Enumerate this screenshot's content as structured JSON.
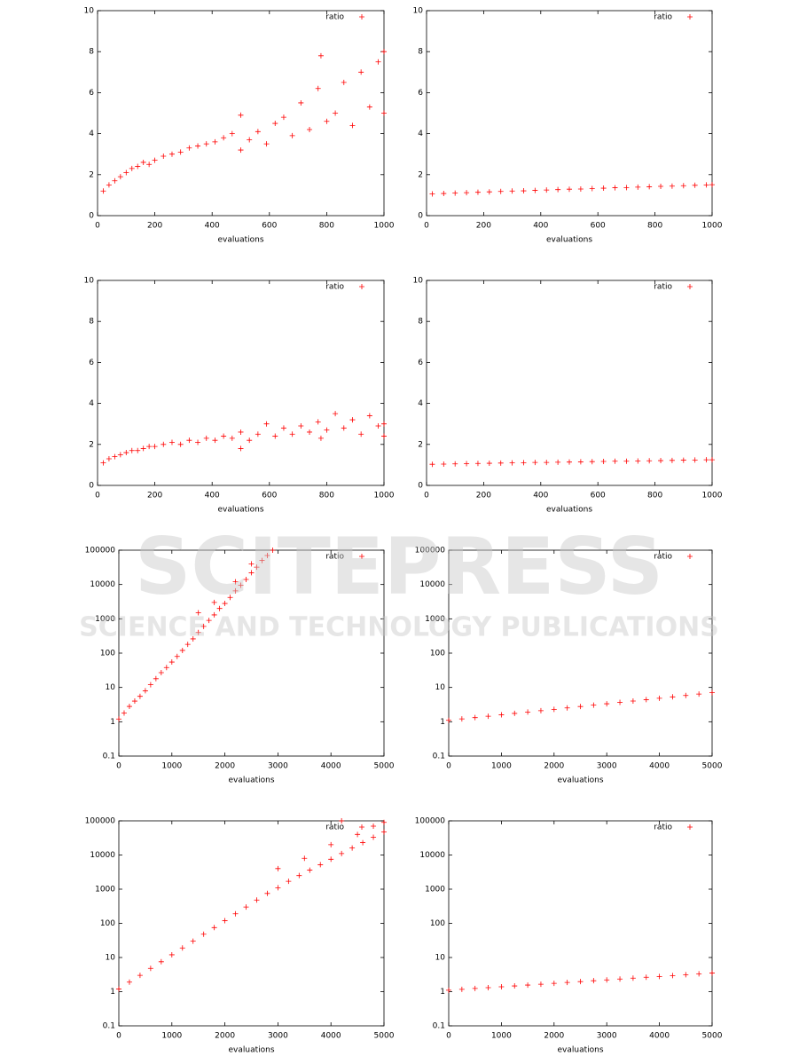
{
  "chart_data": [
    {
      "type": "scatter",
      "xlabel": "evaluations",
      "yscale": "linear",
      "legend": "upper right",
      "xlim": [
        0,
        1000
      ],
      "ylim": [
        0,
        10
      ],
      "xticks": [
        0,
        200,
        400,
        600,
        800,
        1000
      ],
      "yticks": [
        0,
        2,
        4,
        6,
        8,
        10
      ],
      "series": [
        {
          "name": "ratio",
          "color": "#ff0000",
          "x": [
            20,
            40,
            60,
            80,
            100,
            120,
            140,
            160,
            180,
            200,
            230,
            260,
            290,
            320,
            350,
            380,
            410,
            440,
            470,
            500,
            530,
            560,
            590,
            620,
            650,
            680,
            710,
            740,
            770,
            800,
            830,
            860,
            890,
            920,
            950,
            980,
            1000,
            500,
            780,
            1000
          ],
          "values": [
            1.2,
            1.5,
            1.7,
            1.9,
            2.1,
            2.3,
            2.4,
            2.6,
            2.5,
            2.7,
            2.9,
            3.0,
            3.1,
            3.3,
            3.4,
            3.5,
            3.6,
            3.8,
            4.0,
            4.9,
            3.7,
            4.1,
            3.5,
            4.5,
            4.8,
            3.9,
            5.5,
            4.2,
            6.2,
            4.6,
            5.0,
            6.5,
            4.4,
            7.0,
            5.3,
            7.5,
            5.0,
            3.2,
            7.8,
            8.0
          ]
        }
      ]
    },
    {
      "type": "scatter",
      "xlabel": "evaluations",
      "yscale": "linear",
      "legend": "upper right",
      "xlim": [
        0,
        1000
      ],
      "ylim": [
        0,
        10
      ],
      "xticks": [
        0,
        200,
        400,
        600,
        800,
        1000
      ],
      "yticks": [
        0,
        2,
        4,
        6,
        8,
        10
      ],
      "series": [
        {
          "name": "ratio",
          "color": "#ff0000",
          "x": [
            20,
            60,
            100,
            140,
            180,
            220,
            260,
            300,
            340,
            380,
            420,
            460,
            500,
            540,
            580,
            620,
            660,
            700,
            740,
            780,
            820,
            860,
            900,
            940,
            980,
            1000
          ],
          "values": [
            1.06,
            1.08,
            1.1,
            1.12,
            1.14,
            1.16,
            1.18,
            1.2,
            1.21,
            1.23,
            1.25,
            1.27,
            1.29,
            1.3,
            1.32,
            1.34,
            1.36,
            1.37,
            1.39,
            1.41,
            1.43,
            1.44,
            1.46,
            1.48,
            1.5,
            1.51
          ]
        }
      ]
    },
    {
      "type": "scatter",
      "xlabel": "evaluations",
      "yscale": "linear",
      "legend": "upper right",
      "xlim": [
        0,
        1000
      ],
      "ylim": [
        0,
        10
      ],
      "xticks": [
        0,
        200,
        400,
        600,
        800,
        1000
      ],
      "yticks": [
        0,
        2,
        4,
        6,
        8,
        10
      ],
      "series": [
        {
          "name": "ratio",
          "color": "#ff0000",
          "x": [
            20,
            40,
            60,
            80,
            100,
            120,
            140,
            160,
            180,
            200,
            230,
            260,
            290,
            320,
            350,
            380,
            410,
            440,
            470,
            500,
            530,
            560,
            590,
            620,
            650,
            680,
            710,
            740,
            770,
            800,
            830,
            860,
            890,
            920,
            950,
            980,
            1000,
            500,
            780,
            1000
          ],
          "values": [
            1.1,
            1.3,
            1.4,
            1.5,
            1.6,
            1.7,
            1.7,
            1.8,
            1.9,
            1.9,
            2.0,
            2.1,
            2.0,
            2.2,
            2.1,
            2.3,
            2.2,
            2.4,
            2.3,
            2.6,
            2.2,
            2.5,
            3.0,
            2.4,
            2.8,
            2.5,
            2.9,
            2.6,
            3.1,
            2.7,
            3.5,
            2.8,
            3.2,
            2.5,
            3.4,
            2.9,
            3.0,
            1.8,
            2.3,
            2.4
          ]
        }
      ]
    },
    {
      "type": "scatter",
      "xlabel": "evaluations",
      "yscale": "linear",
      "legend": "upper right",
      "xlim": [
        0,
        1000
      ],
      "ylim": [
        0,
        10
      ],
      "xticks": [
        0,
        200,
        400,
        600,
        800,
        1000
      ],
      "yticks": [
        0,
        2,
        4,
        6,
        8,
        10
      ],
      "series": [
        {
          "name": "ratio",
          "color": "#ff0000",
          "x": [
            20,
            60,
            100,
            140,
            180,
            220,
            260,
            300,
            340,
            380,
            420,
            460,
            500,
            540,
            580,
            620,
            660,
            700,
            740,
            780,
            820,
            860,
            900,
            940,
            980,
            1000
          ],
          "values": [
            1.03,
            1.04,
            1.05,
            1.06,
            1.07,
            1.08,
            1.09,
            1.1,
            1.11,
            1.12,
            1.12,
            1.13,
            1.14,
            1.15,
            1.16,
            1.17,
            1.18,
            1.18,
            1.19,
            1.2,
            1.21,
            1.22,
            1.23,
            1.24,
            1.25,
            1.25
          ]
        }
      ]
    },
    {
      "type": "scatter",
      "xlabel": "evaluations",
      "yscale": "log",
      "legend": "upper right",
      "xlim": [
        0,
        5000
      ],
      "ylim": [
        0.1,
        100000
      ],
      "xticks": [
        0,
        1000,
        2000,
        3000,
        4000,
        5000
      ],
      "yticks": [
        0.1,
        1,
        10,
        100,
        1000,
        10000,
        100000
      ],
      "series": [
        {
          "name": "ratio",
          "color": "#ff0000",
          "x": [
            0,
            100,
            200,
            300,
            400,
            500,
            600,
            700,
            800,
            900,
            1000,
            1100,
            1200,
            1300,
            1400,
            1500,
            1600,
            1700,
            1800,
            1900,
            2000,
            2100,
            2200,
            2300,
            2400,
            2500,
            2600,
            2700,
            2800,
            2900,
            1500,
            1800,
            2200,
            2500
          ],
          "values": [
            1.2,
            1.8,
            2.8,
            4,
            5.5,
            8,
            12,
            18,
            27,
            38,
            55,
            80,
            120,
            180,
            260,
            400,
            600,
            900,
            1300,
            2000,
            2800,
            4200,
            6500,
            9500,
            14000,
            22000,
            32000,
            50000,
            70000,
            100000,
            1500,
            3000,
            12000,
            40000
          ]
        }
      ]
    },
    {
      "type": "scatter",
      "xlabel": "evaluations",
      "yscale": "log",
      "legend": "upper right",
      "xlim": [
        0,
        5000
      ],
      "ylim": [
        0.1,
        100000
      ],
      "xticks": [
        0,
        1000,
        2000,
        3000,
        4000,
        5000
      ],
      "yticks": [
        0.1,
        1,
        10,
        100,
        1000,
        10000,
        100000
      ],
      "series": [
        {
          "name": "ratio",
          "color": "#ff0000",
          "x": [
            0,
            250,
            500,
            750,
            1000,
            1250,
            1500,
            1750,
            2000,
            2250,
            2500,
            2750,
            3000,
            3250,
            3500,
            3750,
            4000,
            4250,
            4500,
            4750,
            5000
          ],
          "values": [
            1.1,
            1.21,
            1.32,
            1.45,
            1.59,
            1.75,
            1.92,
            2.1,
            2.3,
            2.53,
            2.78,
            3.05,
            3.34,
            3.67,
            4.02,
            4.41,
            4.84,
            5.31,
            5.83,
            6.4,
            7.0
          ]
        }
      ]
    },
    {
      "type": "scatter",
      "xlabel": "evaluations",
      "yscale": "log",
      "legend": "upper right",
      "xlim": [
        0,
        5000
      ],
      "ylim": [
        0.1,
        100000
      ],
      "xticks": [
        0,
        1000,
        2000,
        3000,
        4000,
        5000
      ],
      "yticks": [
        0.1,
        1,
        10,
        100,
        1000,
        10000,
        100000
      ],
      "series": [
        {
          "name": "ratio",
          "color": "#ff0000",
          "x": [
            0,
            200,
            400,
            600,
            800,
            1000,
            1200,
            1400,
            1600,
            1800,
            2000,
            2200,
            2400,
            2600,
            2800,
            3000,
            3200,
            3400,
            3600,
            3800,
            4000,
            4200,
            4400,
            4600,
            4800,
            5000,
            3000,
            3500,
            4000,
            4500,
            5000,
            4200,
            4800
          ],
          "values": [
            1.2,
            1.9,
            3,
            4.8,
            7.5,
            12,
            19,
            30,
            48,
            75,
            120,
            190,
            300,
            480,
            750,
            1100,
            1700,
            2500,
            3600,
            5200,
            7500,
            11000,
            16000,
            23000,
            33000,
            47000,
            4000,
            8000,
            20000,
            40000,
            90000,
            100000,
            70000
          ]
        }
      ]
    },
    {
      "type": "scatter",
      "xlabel": "evaluations",
      "yscale": "log",
      "legend": "upper right",
      "xlim": [
        0,
        5000
      ],
      "ylim": [
        0.1,
        100000
      ],
      "xticks": [
        0,
        1000,
        2000,
        3000,
        4000,
        5000
      ],
      "yticks": [
        0.1,
        1,
        10,
        100,
        1000,
        10000,
        100000
      ],
      "series": [
        {
          "name": "ratio",
          "color": "#ff0000",
          "x": [
            0,
            250,
            500,
            750,
            1000,
            1250,
            1500,
            1750,
            2000,
            2250,
            2500,
            2750,
            3000,
            3250,
            3500,
            3750,
            4000,
            4250,
            4500,
            4750,
            5000
          ],
          "values": [
            1.1,
            1.17,
            1.24,
            1.31,
            1.39,
            1.47,
            1.56,
            1.65,
            1.75,
            1.86,
            1.97,
            2.09,
            2.21,
            2.35,
            2.49,
            2.64,
            2.79,
            2.96,
            3.14,
            3.33,
            3.52
          ]
        }
      ]
    }
  ],
  "watermark": {
    "title": "SCITEPRESS",
    "subtitle": "SCIENCE AND TECHNOLOGY PUBLICATIONS"
  }
}
